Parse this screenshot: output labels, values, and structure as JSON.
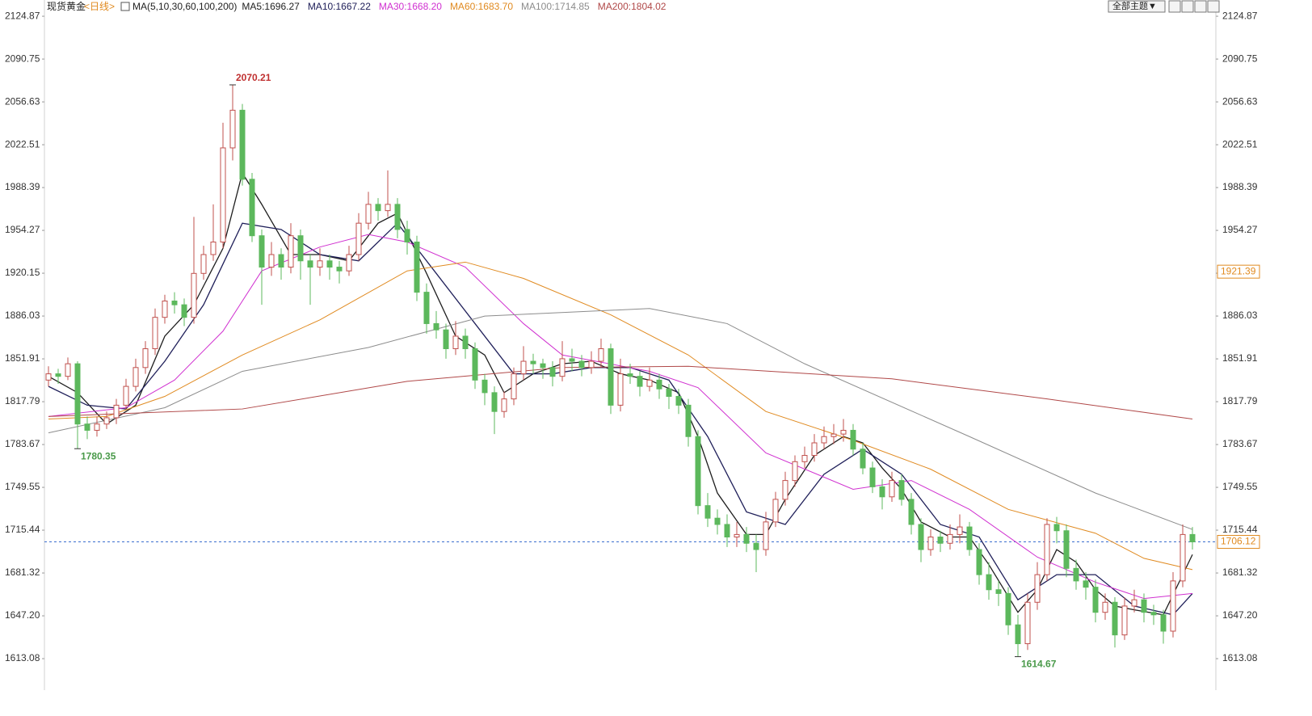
{
  "header": {
    "symbol": "现货黄金",
    "period": "<日线>",
    "ma_spec": "MA(5,10,30,60,100,200)"
  },
  "toolbar": {
    "theme_button": "全部主题▼"
  },
  "chart_data": {
    "type": "candlestick",
    "ylim": [
      1588,
      2137.8
    ],
    "yticks": [
      2124.87,
      2090.75,
      2056.63,
      2022.51,
      1988.39,
      1954.27,
      1920.15,
      1886.03,
      1851.91,
      1817.79,
      1783.67,
      1749.55,
      1715.44,
      1681.32,
      {
        "value": 1647.2,
        "label": "1647.20"
      },
      1613.08
    ],
    "up_color": "#c0504d",
    "down_color": "#5cb85c",
    "ohlc": [
      [
        1835,
        1846,
        1830,
        1840
      ],
      [
        1840,
        1844,
        1832,
        1838
      ],
      [
        1838,
        1853,
        1835,
        1848
      ],
      [
        1848,
        1850,
        1780.35,
        1800
      ],
      [
        1800,
        1806,
        1788,
        1795
      ],
      [
        1795,
        1806,
        1790,
        1800
      ],
      [
        1800,
        1810,
        1796,
        1805
      ],
      [
        1805,
        1820,
        1800,
        1815
      ],
      [
        1815,
        1836,
        1812,
        1830
      ],
      [
        1830,
        1852,
        1826,
        1845
      ],
      [
        1845,
        1866,
        1840,
        1860
      ],
      [
        1860,
        1892,
        1855,
        1885
      ],
      [
        1885,
        1903,
        1880,
        1898
      ],
      [
        1898,
        1905,
        1888,
        1895
      ],
      [
        1895,
        1900,
        1878,
        1885
      ],
      [
        1885,
        1965,
        1880,
        1920
      ],
      [
        1920,
        1942,
        1915,
        1935
      ],
      [
        1935,
        1975,
        1930,
        1945
      ],
      [
        1945,
        2040,
        1940,
        2020
      ],
      [
        2020,
        2070.21,
        2010,
        2050
      ],
      [
        2050,
        2055,
        1990,
        1995
      ],
      [
        1995,
        2000,
        1945,
        1950
      ],
      [
        1950,
        1955,
        1895,
        1925
      ],
      [
        1925,
        1945,
        1918,
        1935
      ],
      [
        1935,
        1940,
        1915,
        1925
      ],
      [
        1925,
        1960,
        1920,
        1950
      ],
      [
        1950,
        1955,
        1915,
        1930
      ],
      [
        1930,
        1935,
        1895,
        1925
      ],
      [
        1925,
        1940,
        1918,
        1930
      ],
      [
        1930,
        1935,
        1915,
        1925
      ],
      [
        1925,
        1930,
        1912,
        1922
      ],
      [
        1922,
        1942,
        1918,
        1935
      ],
      [
        1935,
        1968,
        1930,
        1960
      ],
      [
        1960,
        1985,
        1955,
        1975
      ],
      [
        1975,
        1980,
        1962,
        1970
      ],
      [
        1970,
        2002,
        1965,
        1975
      ],
      [
        1975,
        1980,
        1948,
        1955
      ],
      [
        1955,
        1962,
        1935,
        1945
      ],
      [
        1945,
        1950,
        1898,
        1905
      ],
      [
        1905,
        1912,
        1872,
        1880
      ],
      [
        1880,
        1890,
        1868,
        1875
      ],
      [
        1875,
        1880,
        1852,
        1860
      ],
      [
        1860,
        1882,
        1855,
        1870
      ],
      [
        1870,
        1876,
        1852,
        1860
      ],
      [
        1860,
        1865,
        1828,
        1835
      ],
      [
        1835,
        1840,
        1815,
        1825
      ],
      [
        1825,
        1830,
        1792,
        1810
      ],
      [
        1810,
        1826,
        1805,
        1820
      ],
      [
        1820,
        1845,
        1815,
        1840
      ],
      [
        1840,
        1862,
        1835,
        1850
      ],
      [
        1850,
        1856,
        1840,
        1848
      ],
      [
        1848,
        1852,
        1836,
        1845
      ],
      [
        1845,
        1850,
        1830,
        1838
      ],
      [
        1838,
        1866,
        1834,
        1852
      ],
      [
        1852,
        1860,
        1842,
        1850
      ],
      [
        1850,
        1855,
        1838,
        1845
      ],
      [
        1845,
        1858,
        1840,
        1850
      ],
      [
        1850,
        1868,
        1845,
        1860
      ],
      [
        1860,
        1864,
        1808,
        1815
      ],
      [
        1815,
        1852,
        1810,
        1840
      ],
      [
        1840,
        1848,
        1832,
        1838
      ],
      [
        1838,
        1842,
        1822,
        1830
      ],
      [
        1830,
        1845,
        1826,
        1835
      ],
      [
        1835,
        1840,
        1820,
        1828
      ],
      [
        1828,
        1832,
        1812,
        1822
      ],
      [
        1822,
        1828,
        1808,
        1815
      ],
      [
        1815,
        1820,
        1782,
        1790
      ],
      [
        1790,
        1795,
        1728,
        1735
      ],
      [
        1735,
        1745,
        1718,
        1725
      ],
      [
        1725,
        1732,
        1712,
        1720
      ],
      [
        1720,
        1728,
        1702,
        1710
      ],
      [
        1710,
        1722,
        1702,
        1712
      ],
      [
        1712,
        1718,
        1698,
        1705
      ],
      [
        1705,
        1712,
        1682,
        1700
      ],
      [
        1700,
        1730,
        1695,
        1722
      ],
      [
        1722,
        1746,
        1718,
        1740
      ],
      [
        1740,
        1762,
        1735,
        1755
      ],
      [
        1755,
        1775,
        1750,
        1770
      ],
      [
        1770,
        1782,
        1765,
        1775
      ],
      [
        1775,
        1792,
        1770,
        1785
      ],
      [
        1785,
        1798,
        1780,
        1790
      ],
      [
        1790,
        1800,
        1784,
        1792
      ],
      [
        1792,
        1804,
        1786,
        1795
      ],
      [
        1795,
        1800,
        1775,
        1780
      ],
      [
        1780,
        1785,
        1760,
        1765
      ],
      [
        1765,
        1770,
        1745,
        1750
      ],
      [
        1750,
        1756,
        1732,
        1742
      ],
      [
        1742,
        1762,
        1738,
        1755
      ],
      [
        1755,
        1760,
        1735,
        1740
      ],
      [
        1740,
        1745,
        1712,
        1720
      ],
      [
        1720,
        1725,
        1690,
        1700
      ],
      [
        1700,
        1716,
        1695,
        1710
      ],
      [
        1710,
        1715,
        1698,
        1705
      ],
      [
        1705,
        1720,
        1700,
        1712
      ],
      [
        1712,
        1728,
        1705,
        1718
      ],
      [
        1718,
        1722,
        1695,
        1700
      ],
      [
        1700,
        1705,
        1672,
        1680
      ],
      [
        1680,
        1690,
        1660,
        1668
      ],
      [
        1668,
        1675,
        1655,
        1665
      ],
      [
        1665,
        1670,
        1632,
        1640
      ],
      [
        1640,
        1648,
        1614.67,
        1625
      ],
      [
        1625,
        1665,
        1620,
        1658
      ],
      [
        1658,
        1690,
        1652,
        1680
      ],
      [
        1680,
        1725,
        1675,
        1720
      ],
      [
        1720,
        1726,
        1705,
        1715
      ],
      [
        1715,
        1720,
        1678,
        1685
      ],
      [
        1685,
        1692,
        1668,
        1675
      ],
      [
        1675,
        1682,
        1660,
        1670
      ],
      [
        1670,
        1676,
        1642,
        1650
      ],
      [
        1650,
        1665,
        1644,
        1658
      ],
      [
        1658,
        1662,
        1622,
        1632
      ],
      [
        1632,
        1662,
        1628,
        1655
      ],
      [
        1655,
        1668,
        1650,
        1660
      ],
      [
        1660,
        1665,
        1642,
        1650
      ],
      [
        1650,
        1656,
        1640,
        1648
      ],
      [
        1648,
        1652,
        1625,
        1635
      ],
      [
        1635,
        1682,
        1630,
        1675
      ],
      [
        1675,
        1720,
        1670,
        1712
      ],
      [
        1712,
        1718,
        1700,
        1706.12
      ]
    ],
    "moving_averages": [
      {
        "label": "MA5:1696.27",
        "color": "#1e1e1e",
        "x": [
          0,
          3,
          6,
          9,
          12,
          15,
          18,
          20,
          22,
          25,
          28,
          31,
          34,
          36,
          39,
          42,
          45,
          47,
          50,
          53,
          56,
          59,
          62,
          65,
          67,
          69,
          72,
          74,
          76,
          79,
          82,
          84,
          86,
          88,
          90,
          93,
          95,
          97,
          100,
          102,
          104,
          106,
          108,
          110,
          112,
          115,
          118
        ],
        "values": [
          1838,
          1825,
          1800,
          1815,
          1870,
          1895,
          1940,
          2000,
          1975,
          1935,
          1935,
          1930,
          1960,
          1968,
          1920,
          1870,
          1855,
          1825,
          1840,
          1848,
          1850,
          1840,
          1835,
          1825,
          1790,
          1745,
          1712,
          1712,
          1740,
          1775,
          1790,
          1785,
          1765,
          1748,
          1722,
          1710,
          1710,
          1688,
          1650,
          1668,
          1700,
          1690,
          1668,
          1655,
          1652,
          1648,
          1696
        ]
      },
      {
        "label": "MA10:1667.22",
        "color": "#20205a",
        "x": [
          0,
          4,
          8,
          12,
          16,
          20,
          24,
          28,
          32,
          36,
          40,
          44,
          48,
          52,
          56,
          60,
          64,
          68,
          72,
          76,
          80,
          84,
          88,
          92,
          96,
          100,
          104,
          108,
          112,
          116,
          118
        ],
        "values": [
          1830,
          1815,
          1812,
          1850,
          1895,
          1960,
          1955,
          1935,
          1930,
          1960,
          1920,
          1880,
          1840,
          1840,
          1845,
          1845,
          1835,
          1790,
          1730,
          1720,
          1760,
          1780,
          1760,
          1720,
          1710,
          1660,
          1680,
          1680,
          1655,
          1648,
          1665
        ]
      },
      {
        "label": "MA30:1668.20",
        "color": "#d030d0",
        "x": [
          0,
          8,
          13,
          18,
          22,
          28,
          33,
          37,
          43,
          49,
          53,
          62,
          67,
          74,
          83,
          89,
          95,
          102,
          108,
          113,
          118
        ],
        "values": [
          1806,
          1813,
          1835,
          1874,
          1922,
          1941,
          1951,
          1945,
          1925,
          1880,
          1855,
          1842,
          1829,
          1777,
          1748,
          1755,
          1732,
          1694,
          1674,
          1661,
          1665
        ]
      },
      {
        "label": "MA60:1683.70",
        "color": "#e08a20",
        "x": [
          0,
          6,
          12,
          20,
          28,
          37,
          43,
          49,
          58,
          66,
          74,
          83,
          91,
          99,
          108,
          113,
          118
        ],
        "values": [
          1804,
          1806,
          1822,
          1855,
          1883,
          1922,
          1929,
          1916,
          1887,
          1855,
          1810,
          1787,
          1764,
          1732,
          1713,
          1693,
          1684
        ]
      },
      {
        "label": "MA100:1714.85",
        "color": "#8c8c8c",
        "x": [
          0,
          12,
          20,
          33,
          45,
          62,
          70,
          78,
          95,
          108,
          118
        ],
        "values": [
          1793,
          1813,
          1842,
          1861,
          1886,
          1892,
          1880,
          1848,
          1790,
          1745,
          1716
        ]
      },
      {
        "label": "MA200:1804.02",
        "color": "#b04848",
        "x": [
          0,
          20,
          37,
          53,
          66,
          87,
          103,
          118
        ],
        "values": [
          1806,
          1812,
          1834,
          1845,
          1846,
          1836,
          1820,
          1804
        ]
      }
    ],
    "annotations": [
      {
        "index": 19,
        "value": 2070.21,
        "color": "#c03030",
        "position": "above"
      },
      {
        "index": 3,
        "value": 1780.35,
        "color": "#4a9a4a",
        "position": "below"
      },
      {
        "index": 100,
        "value": 1614.67,
        "color": "#4a9a4a",
        "position": "below"
      }
    ],
    "last_price": {
      "value": 1706.12,
      "color": "#e08a20",
      "line_color": "#3b6fd0"
    },
    "side_markers": [
      {
        "value": 1921.39,
        "color": "#e08a20"
      }
    ]
  }
}
